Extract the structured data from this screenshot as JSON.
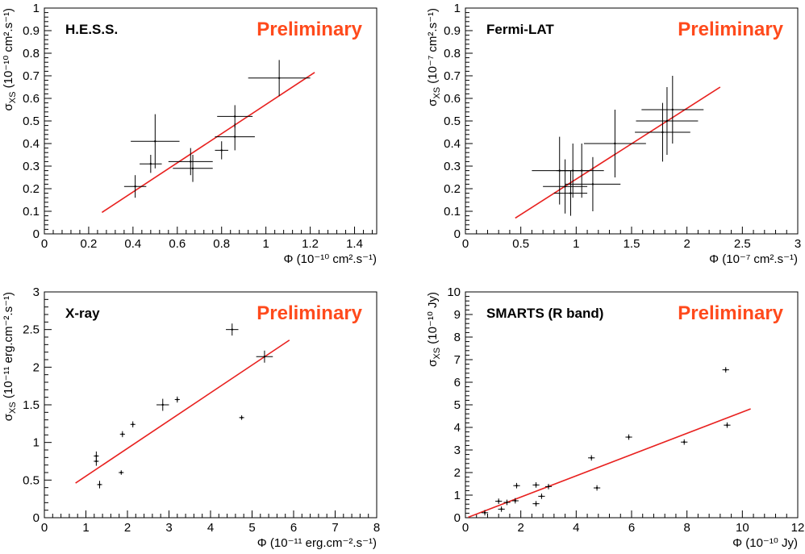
{
  "colors": {
    "fit_line": "#e8211f",
    "preliminary": "#ff4a1c",
    "points": "#000000"
  },
  "chart_data": [
    {
      "type": "scatter",
      "panel_label": "H.E.S.S.",
      "watermark": "Preliminary",
      "xlabel": "Φ (10⁻¹⁰ cm².s⁻¹)",
      "ylabel": "σXS (10⁻¹⁰ cm².s⁻¹)",
      "xlim": [
        0,
        1.5
      ],
      "ylim": [
        0,
        1
      ],
      "xticks": [
        0,
        0.2,
        0.4,
        0.6,
        0.8,
        1,
        1.2,
        1.4
      ],
      "xtick_labels": [
        "0",
        "0.2",
        "0.4",
        "0.6",
        "0.8",
        "1",
        "1.2",
        "1.4"
      ],
      "yticks": [
        0,
        0.1,
        0.2,
        0.3,
        0.4,
        0.5,
        0.6,
        0.7,
        0.8,
        0.9,
        1
      ],
      "ytick_labels": [
        "0",
        "0.1",
        "0.2",
        "0.3",
        "0.4",
        "0.5",
        "0.6",
        "0.7",
        "0.8",
        "0.9",
        "1"
      ],
      "points": [
        {
          "x": 0.41,
          "y": 0.21,
          "xerr": 0.05,
          "yerr": 0.05
        },
        {
          "x": 0.48,
          "y": 0.31,
          "xerr": 0.05,
          "yerr": 0.04
        },
        {
          "x": 0.5,
          "y": 0.41,
          "xerr": 0.11,
          "yerr": 0.12
        },
        {
          "x": 0.66,
          "y": 0.32,
          "xerr": 0.1,
          "yerr": 0.06
        },
        {
          "x": 0.67,
          "y": 0.29,
          "xerr": 0.09,
          "yerr": 0.06
        },
        {
          "x": 0.8,
          "y": 0.37,
          "xerr": 0.03,
          "yerr": 0.04
        },
        {
          "x": 0.86,
          "y": 0.43,
          "xerr": 0.09,
          "yerr": 0.06
        },
        {
          "x": 0.86,
          "y": 0.52,
          "xerr": 0.08,
          "yerr": 0.05
        },
        {
          "x": 1.06,
          "y": 0.69,
          "xerr": 0.14,
          "yerr": 0.08
        }
      ],
      "fit": [
        [
          0.26,
          0.095
        ],
        [
          1.22,
          0.715
        ]
      ]
    },
    {
      "type": "scatter",
      "panel_label": "Fermi-LAT",
      "watermark": "Preliminary",
      "xlabel": "Φ (10⁻⁷ cm².s⁻¹)",
      "ylabel": "σXS (10⁻⁷ cm².s⁻¹)",
      "xlim": [
        0,
        3
      ],
      "ylim": [
        0,
        1
      ],
      "xticks": [
        0,
        0.5,
        1,
        1.5,
        2,
        2.5,
        3
      ],
      "xtick_labels": [
        "0",
        "0.5",
        "1",
        "1.5",
        "2",
        "2.5",
        "3"
      ],
      "yticks": [
        0,
        0.1,
        0.2,
        0.3,
        0.4,
        0.5,
        0.6,
        0.7,
        0.8,
        0.9,
        1
      ],
      "ytick_labels": [
        "0",
        "0.1",
        "0.2",
        "0.3",
        "0.4",
        "0.5",
        "0.6",
        "0.7",
        "0.8",
        "0.9",
        "1"
      ],
      "points": [
        {
          "x": 0.85,
          "y": 0.28,
          "xerr": 0.25,
          "yerr": 0.15
        },
        {
          "x": 0.9,
          "y": 0.21,
          "xerr": 0.2,
          "yerr": 0.12
        },
        {
          "x": 0.95,
          "y": 0.18,
          "xerr": 0.15,
          "yerr": 0.1
        },
        {
          "x": 0.97,
          "y": 0.28,
          "xerr": 0.15,
          "yerr": 0.12
        },
        {
          "x": 1.05,
          "y": 0.28,
          "xerr": 0.2,
          "yerr": 0.12
        },
        {
          "x": 1.15,
          "y": 0.22,
          "xerr": 0.25,
          "yerr": 0.12
        },
        {
          "x": 1.35,
          "y": 0.4,
          "xerr": 0.28,
          "yerr": 0.15
        },
        {
          "x": 1.78,
          "y": 0.45,
          "xerr": 0.25,
          "yerr": 0.13
        },
        {
          "x": 1.82,
          "y": 0.5,
          "xerr": 0.28,
          "yerr": 0.15
        },
        {
          "x": 1.87,
          "y": 0.55,
          "xerr": 0.28,
          "yerr": 0.15
        }
      ],
      "fit": [
        [
          0.45,
          0.07
        ],
        [
          2.3,
          0.65
        ]
      ]
    },
    {
      "type": "scatter",
      "panel_label": "X-ray",
      "watermark": "Preliminary",
      "xlabel": "Φ (10⁻¹¹ erg.cm⁻².s⁻¹)",
      "ylabel": "σXS (10⁻¹¹ erg.cm⁻².s⁻¹)",
      "xlim": [
        0,
        8
      ],
      "ylim": [
        0,
        3
      ],
      "xticks": [
        0,
        1,
        2,
        3,
        4,
        5,
        6,
        7,
        8
      ],
      "xtick_labels": [
        "0",
        "1",
        "2",
        "3",
        "4",
        "5",
        "6",
        "7",
        "8"
      ],
      "yticks": [
        0,
        0.5,
        1,
        1.5,
        2,
        2.5,
        3
      ],
      "ytick_labels": [
        "0",
        "0.5",
        "1",
        "1.5",
        "2",
        "2.5",
        "3"
      ],
      "points": [
        {
          "x": 1.25,
          "y": 0.82,
          "xerr": 0.06,
          "yerr": 0.06
        },
        {
          "x": 1.25,
          "y": 0.75,
          "xerr": 0.06,
          "yerr": 0.06
        },
        {
          "x": 1.33,
          "y": 0.44,
          "xerr": 0.06,
          "yerr": 0.05
        },
        {
          "x": 1.85,
          "y": 0.6,
          "xerr": 0.06,
          "yerr": 0.03
        },
        {
          "x": 1.88,
          "y": 1.11,
          "xerr": 0.06,
          "yerr": 0.04
        },
        {
          "x": 2.13,
          "y": 1.24,
          "xerr": 0.06,
          "yerr": 0.04
        },
        {
          "x": 2.85,
          "y": 1.5,
          "xerr": 0.15,
          "yerr": 0.08
        },
        {
          "x": 3.2,
          "y": 1.57,
          "xerr": 0.06,
          "yerr": 0.04
        },
        {
          "x": 4.52,
          "y": 2.5,
          "xerr": 0.15,
          "yerr": 0.08
        },
        {
          "x": 4.75,
          "y": 1.33,
          "xerr": 0.06,
          "yerr": 0.03
        },
        {
          "x": 5.3,
          "y": 2.14,
          "xerr": 0.2,
          "yerr": 0.08
        }
      ],
      "fit": [
        [
          0.75,
          0.46
        ],
        [
          5.9,
          2.36
        ]
      ]
    },
    {
      "type": "scatter",
      "panel_label": "SMARTS (R band)",
      "watermark": "Preliminary",
      "xlabel": "Φ (10⁻¹⁰ Jy)",
      "ylabel": "σXS (10⁻¹⁰ Jy)",
      "xlim": [
        0,
        12
      ],
      "ylim": [
        0,
        10
      ],
      "xticks": [
        0,
        2,
        4,
        6,
        8,
        10,
        12
      ],
      "xtick_labels": [
        "0",
        "2",
        "4",
        "6",
        "8",
        "10",
        "12"
      ],
      "yticks": [
        0,
        1,
        2,
        3,
        4,
        5,
        6,
        7,
        8,
        9,
        10
      ],
      "ytick_labels": [
        "0",
        "1",
        "2",
        "3",
        "4",
        "5",
        "6",
        "7",
        "8",
        "9",
        "10"
      ],
      "points": [
        {
          "x": 0.7,
          "y": 0.22,
          "xerr": 0.12,
          "yerr": 0.12
        },
        {
          "x": 1.2,
          "y": 0.73,
          "xerr": 0.12,
          "yerr": 0.12
        },
        {
          "x": 1.3,
          "y": 0.38,
          "xerr": 0.12,
          "yerr": 0.12
        },
        {
          "x": 1.5,
          "y": 0.68,
          "xerr": 0.12,
          "yerr": 0.12
        },
        {
          "x": 1.8,
          "y": 0.75,
          "xerr": 0.12,
          "yerr": 0.12
        },
        {
          "x": 1.85,
          "y": 1.42,
          "xerr": 0.12,
          "yerr": 0.12
        },
        {
          "x": 2.55,
          "y": 1.45,
          "xerr": 0.12,
          "yerr": 0.12
        },
        {
          "x": 2.55,
          "y": 0.62,
          "xerr": 0.12,
          "yerr": 0.12
        },
        {
          "x": 2.75,
          "y": 0.95,
          "xerr": 0.12,
          "yerr": 0.12
        },
        {
          "x": 3.0,
          "y": 1.38,
          "xerr": 0.12,
          "yerr": 0.12
        },
        {
          "x": 4.55,
          "y": 2.65,
          "xerr": 0.12,
          "yerr": 0.12
        },
        {
          "x": 4.75,
          "y": 1.32,
          "xerr": 0.12,
          "yerr": 0.12
        },
        {
          "x": 5.9,
          "y": 3.57,
          "xerr": 0.12,
          "yerr": 0.12
        },
        {
          "x": 7.9,
          "y": 3.35,
          "xerr": 0.12,
          "yerr": 0.12
        },
        {
          "x": 9.4,
          "y": 6.55,
          "xerr": 0.12,
          "yerr": 0.12
        },
        {
          "x": 9.45,
          "y": 4.1,
          "xerr": 0.12,
          "yerr": 0.12
        }
      ],
      "fit": [
        [
          0.1,
          0.02
        ],
        [
          10.3,
          4.82
        ]
      ]
    }
  ]
}
